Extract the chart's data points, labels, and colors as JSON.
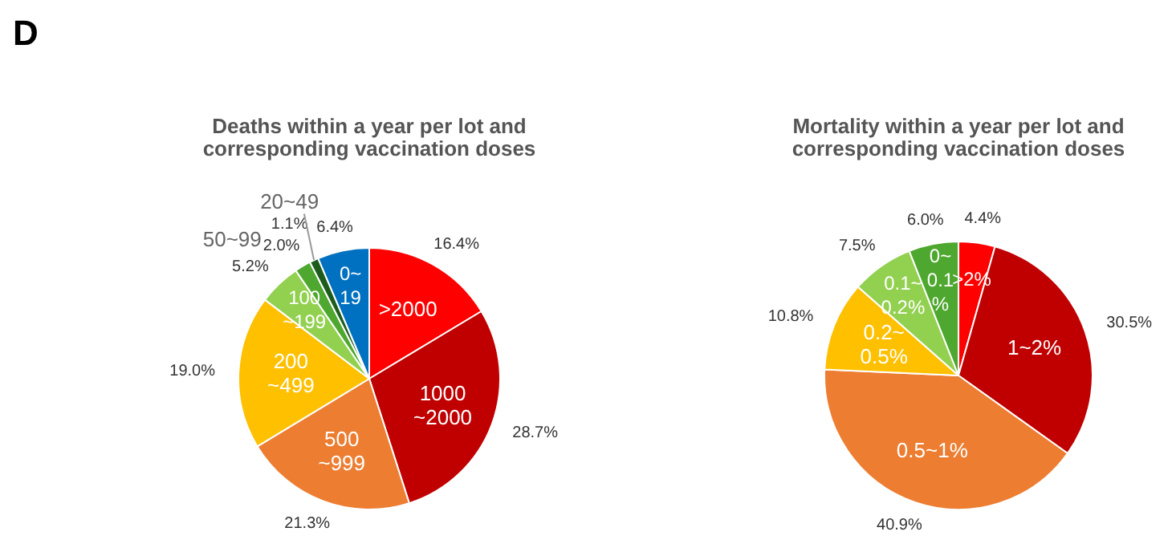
{
  "chart_data": [
    {
      "type": "pie",
      "title": "Deaths within a year per lot and corresponding vaccination doses",
      "annotations": [
        "D"
      ],
      "categories": [
        ">2000",
        "1000\n~2000",
        "500\n~999",
        "200\n~499",
        "100\n~199",
        "50~99",
        "20~49",
        "0~\n19"
      ],
      "values": [
        16.4,
        28.7,
        21.3,
        19.0,
        5.2,
        2.0,
        1.1,
        6.4
      ],
      "value_labels": [
        "16.4%",
        "28.7%",
        "21.3%",
        "19.0%",
        "5.2%",
        "2.0%",
        "1.1%",
        "6.4%"
      ],
      "colors": [
        "#ff0000",
        "#c00000",
        "#ed7d31",
        "#ffc000",
        "#92d050",
        "#4ea72e",
        "#1e5c1e",
        "#0070c0"
      ]
    },
    {
      "type": "pie",
      "title": "Mortality within a year per lot and corresponding vaccination doses",
      "categories": [
        ">2%",
        "1~2%",
        "0.5~1%",
        "0.2~\n0.5%",
        "0.1~\n0.2%",
        "0~\n0.1\n%"
      ],
      "values": [
        4.4,
        30.5,
        40.9,
        10.8,
        7.5,
        6.0
      ],
      "value_labels": [
        "4.4%",
        "30.5%",
        "40.9%",
        "10.8%",
        "7.5%",
        "6.0%"
      ],
      "colors": [
        "#ff0000",
        "#c00000",
        "#ed7d31",
        "#ffc000",
        "#92d050",
        "#4ea72e"
      ]
    }
  ]
}
